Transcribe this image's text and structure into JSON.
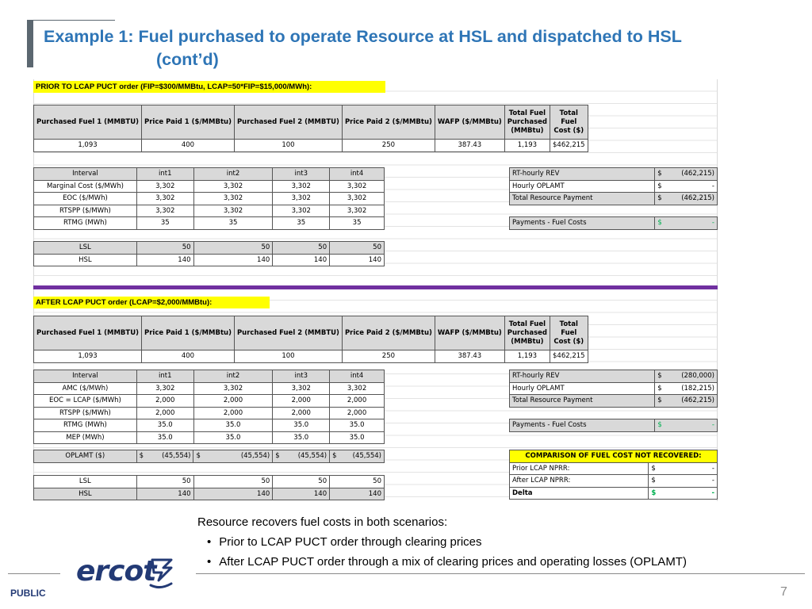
{
  "title": {
    "line1": "Example 1:  Fuel purchased to operate Resource at HSL and dispatched to HSL",
    "line2": "(cont’d)"
  },
  "prior": {
    "label": "PRIOR TO LCAP PUCT order (FIP=$300/MMBtu, LCAP=50*FIP=$15,000/MWh):",
    "fuel_headers": [
      "Purchased Fuel 1 (MMBTU)",
      "Price Paid 1 ($/MMBtu)",
      "Purchased Fuel 2 (MMBTU)",
      "Price Paid 2 ($/MMBtu)",
      "WAFP ($/MMBtu)",
      "Total Fuel Purchased (MMBtu)",
      "Total Fuel Cost ($)"
    ],
    "fuel_values": [
      "1,093",
      "400",
      "100",
      "250",
      "387.43",
      "1,193",
      "$",
      "462,215"
    ],
    "interval_rows": [
      [
        "Interval",
        "int1",
        "int2",
        "int3",
        "int4"
      ],
      [
        "Marginal Cost ($/MWh)",
        "3,302",
        "3,302",
        "3,302",
        "3,302"
      ],
      [
        "EOC ($/MWh)",
        "3,302",
        "3,302",
        "3,302",
        "3,302"
      ],
      [
        "RTSPP ($/MWh)",
        "3,302",
        "3,302",
        "3,302",
        "3,302"
      ],
      [
        "RTMG (MWh)",
        "35",
        "35",
        "35",
        "35"
      ]
    ],
    "limit_rows": [
      [
        "LSL",
        "50",
        "50",
        "50",
        "50"
      ],
      [
        "HSL",
        "140",
        "140",
        "140",
        "140"
      ]
    ],
    "summary": [
      {
        "label": "RT-hourly REV",
        "sym": "$",
        "value": "(462,215)"
      },
      {
        "label": "Hourly OPLAMT",
        "sym": "$",
        "value": "-"
      },
      {
        "label": "Total Resource Payment",
        "sym": "$",
        "value": "(462,215)"
      }
    ],
    "payments": {
      "label": "Payments - Fuel Costs",
      "sym": "$",
      "value": "-"
    }
  },
  "after": {
    "label": "AFTER LCAP PUCT order (LCAP=$2,000/MMBtu):",
    "fuel_headers": [
      "Purchased Fuel 1 (MMBTU)",
      "Price Paid 1 ($/MMBtu)",
      "Purchased Fuel 2 (MMBTU)",
      "Price Paid 2 ($/MMBtu)",
      "WAFP ($/MMBtu)",
      "Total Fuel Purchased (MMBtu)",
      "Total Fuel Cost ($)"
    ],
    "fuel_values": [
      "1,093",
      "400",
      "100",
      "250",
      "387.43",
      "1,193",
      "$",
      "462,215"
    ],
    "interval_rows": [
      [
        "Interval",
        "int1",
        "int2",
        "int3",
        "int4"
      ],
      [
        "AMC ($/MWh)",
        "3,302",
        "3,302",
        "3,302",
        "3,302"
      ],
      [
        "EOC = LCAP ($/MWh)",
        "2,000",
        "2,000",
        "2,000",
        "2,000"
      ],
      [
        "RTSPP ($/MWh)",
        "2,000",
        "2,000",
        "2,000",
        "2,000"
      ],
      [
        "RTMG (MWh)",
        "35.0",
        "35.0",
        "35.0",
        "35.0"
      ],
      [
        "MEP (MWh)",
        "35.0",
        "35.0",
        "35.0",
        "35.0"
      ]
    ],
    "oplamt": {
      "label": "OPLAMT ($)",
      "values": [
        "(45,554)",
        "(45,554)",
        "(45,554)",
        "(45,554)"
      ],
      "sym": "$"
    },
    "limit_rows": [
      [
        "LSL",
        "50",
        "50",
        "50",
        "50"
      ],
      [
        "HSL",
        "140",
        "140",
        "140",
        "140"
      ]
    ],
    "summary": [
      {
        "label": "RT-hourly REV",
        "sym": "$",
        "value": "(280,000)"
      },
      {
        "label": "Hourly OPLAMT",
        "sym": "$",
        "value": "(182,215)"
      },
      {
        "label": "Total Resource Payment",
        "sym": "$",
        "value": "(462,215)"
      }
    ],
    "payments": {
      "label": "Payments - Fuel Costs",
      "sym": "$",
      "value": "-"
    },
    "comparison": {
      "header": "COMPARISON OF FUEL COST NOT RECOVERED:",
      "rows": [
        {
          "label": "Prior LCAP NPRR:",
          "sym": "$",
          "value": "-"
        },
        {
          "label": "After LCAP NPRR:",
          "sym": "$",
          "value": "-"
        },
        {
          "label": "Delta",
          "sym": "$",
          "value": "-"
        }
      ]
    }
  },
  "notes": {
    "heading": "Resource recovers fuel costs in both scenarios:",
    "bullets": [
      "Prior to LCAP PUCT order through clearing prices",
      "After LCAP PUCT order through a mix of clearing prices and operating losses (OPLAMT)"
    ]
  },
  "footer": {
    "logo": "ercot",
    "classification": "PUBLIC",
    "page": "7"
  },
  "colors": {
    "title": "#2e75b6",
    "highlight": "#ffff00",
    "divider": "#7030a0",
    "green": "#00b050",
    "logo": "#233a75"
  }
}
